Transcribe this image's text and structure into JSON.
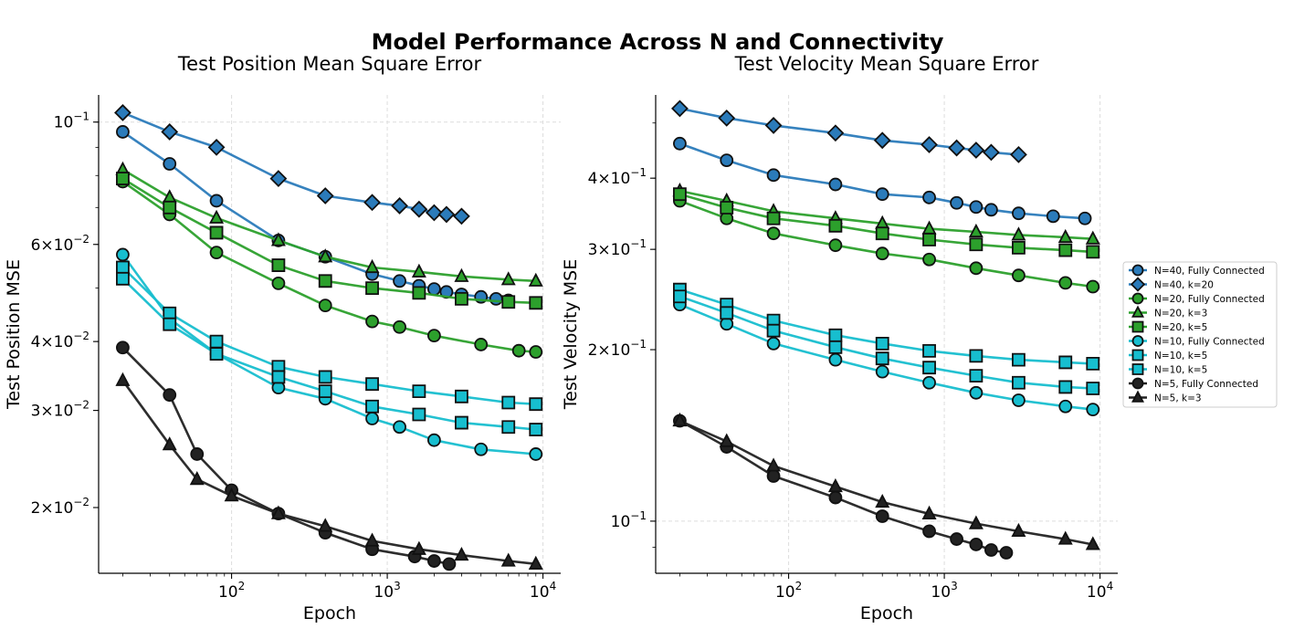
{
  "figure": {
    "suptitle": "Model Performance Across N and Connectivity"
  },
  "colors": {
    "N40": "#2b7bba",
    "N20": "#2ca02c",
    "N10": "#17becf",
    "N5": "#222222"
  },
  "legend_labels": [
    "N=40, Fully Connected",
    "N=40, k=20",
    "N=20, Fully Connected",
    "N=20, k=3",
    "N=20, k=5",
    "N=10, Fully Connected",
    "N=10, k=5",
    "N=10, k=5",
    "N=5, Fully Connected",
    "N=5, k=3"
  ],
  "chart_data": [
    {
      "type": "line",
      "title": "Test Position Mean Square Error",
      "xlabel": "Epoch",
      "ylabel": "Test Position MSE",
      "xscale": "log",
      "yscale": "log",
      "xlim": [
        14,
        13000
      ],
      "ylim": [
        0.0152,
        0.112
      ],
      "grid": true,
      "x_ticks": [
        {
          "value": 100,
          "base": "10",
          "exp": "2"
        },
        {
          "value": 1000,
          "base": "10",
          "exp": "3"
        },
        {
          "value": 10000,
          "base": "10",
          "exp": "4"
        }
      ],
      "y_ticks": [
        {
          "value": 0.1,
          "base": "10",
          "exp": "−1",
          "mant": ""
        },
        {
          "value": 0.06,
          "base": "10",
          "exp": "−2",
          "mant": "6×"
        },
        {
          "value": 0.04,
          "base": "10",
          "exp": "−2",
          "mant": "4×"
        },
        {
          "value": 0.03,
          "base": "10",
          "exp": "−2",
          "mant": "3×"
        },
        {
          "value": 0.02,
          "base": "10",
          "exp": "−2",
          "mant": "2×"
        }
      ],
      "series": [
        {
          "name": "N=40, Fully Connected",
          "color": "N40",
          "marker": "circle",
          "x": [
            20,
            40,
            80,
            200,
            400,
            800,
            1200,
            1600,
            2000,
            2400,
            3000,
            4000,
            5000,
            6000
          ],
          "values": [
            0.096,
            0.084,
            0.072,
            0.061,
            0.057,
            0.053,
            0.0515,
            0.0505,
            0.0498,
            0.0492,
            0.0487,
            0.0482,
            0.0478,
            0.0475
          ]
        },
        {
          "name": "N=40, k=20",
          "color": "N40",
          "marker": "diamond",
          "x": [
            20,
            40,
            80,
            200,
            400,
            800,
            1200,
            1600,
            2000,
            2400,
            3000
          ],
          "values": [
            0.104,
            0.096,
            0.09,
            0.079,
            0.0735,
            0.0715,
            0.0705,
            0.0695,
            0.0685,
            0.068,
            0.0675
          ]
        },
        {
          "name": "N=20, Fully Connected",
          "color": "N20",
          "marker": "circle",
          "x": [
            20,
            40,
            80,
            200,
            400,
            800,
            1200,
            2000,
            4000,
            7000,
            9000
          ],
          "values": [
            0.078,
            0.068,
            0.058,
            0.051,
            0.0465,
            0.0435,
            0.0425,
            0.041,
            0.0395,
            0.0385,
            0.0383
          ]
        },
        {
          "name": "N=20, k=3",
          "color": "N20",
          "marker": "triangle",
          "x": [
            20,
            40,
            80,
            200,
            400,
            800,
            1600,
            3000,
            6000,
            9000
          ],
          "values": [
            0.082,
            0.073,
            0.067,
            0.061,
            0.057,
            0.0545,
            0.0535,
            0.0525,
            0.0518,
            0.0515
          ]
        },
        {
          "name": "N=20, k=5",
          "color": "N20",
          "marker": "square",
          "x": [
            20,
            40,
            80,
            200,
            400,
            800,
            1600,
            3000,
            6000,
            9000
          ],
          "values": [
            0.079,
            0.07,
            0.063,
            0.055,
            0.0515,
            0.05,
            0.049,
            0.0478,
            0.0472,
            0.047
          ]
        },
        {
          "name": "N=10, Fully Connected",
          "color": "N10",
          "marker": "circle",
          "x": [
            20,
            40,
            80,
            200,
            400,
            800,
            1200,
            2000,
            4000,
            9000
          ],
          "values": [
            0.0575,
            0.044,
            0.038,
            0.033,
            0.0315,
            0.029,
            0.028,
            0.0265,
            0.0255,
            0.025
          ]
        },
        {
          "name": "N=10, k=5",
          "color": "N10",
          "marker": "square",
          "x": [
            20,
            40,
            80,
            200,
            400,
            800,
            1600,
            3000,
            6000,
            9000
          ],
          "values": [
            0.0545,
            0.045,
            0.04,
            0.036,
            0.0345,
            0.0335,
            0.0325,
            0.0318,
            0.031,
            0.0308
          ]
        },
        {
          "name": "N=10, k=5",
          "color": "N10",
          "marker": "square",
          "x": [
            20,
            40,
            80,
            200,
            400,
            800,
            1600,
            3000,
            6000,
            9000
          ],
          "values": [
            0.052,
            0.043,
            0.038,
            0.0345,
            0.0325,
            0.0305,
            0.0295,
            0.0285,
            0.028,
            0.0277
          ]
        },
        {
          "name": "N=5, Fully Connected",
          "color": "N5",
          "marker": "circle",
          "x": [
            20,
            40,
            60,
            100,
            200,
            400,
            800,
            1500,
            2000,
            2500
          ],
          "values": [
            0.039,
            0.032,
            0.025,
            0.0215,
            0.0195,
            0.018,
            0.0168,
            0.0163,
            0.016,
            0.0158
          ]
        },
        {
          "name": "N=5, k=3",
          "color": "N5",
          "marker": "triangle",
          "x": [
            20,
            40,
            60,
            100,
            200,
            400,
            800,
            1600,
            3000,
            6000,
            9000
          ],
          "values": [
            0.034,
            0.026,
            0.0225,
            0.021,
            0.0195,
            0.0185,
            0.0174,
            0.0168,
            0.0164,
            0.016,
            0.0158
          ]
        }
      ]
    },
    {
      "type": "line",
      "title": "Test Velocity Mean Square Error",
      "xlabel": "Epoch",
      "ylabel": "Test Velocity MSE",
      "xscale": "log",
      "yscale": "log",
      "xlim": [
        14,
        13000
      ],
      "ylim": [
        0.081,
        0.56
      ],
      "grid": true,
      "x_ticks": [
        {
          "value": 100,
          "base": "10",
          "exp": "2"
        },
        {
          "value": 1000,
          "base": "10",
          "exp": "3"
        },
        {
          "value": 10000,
          "base": "10",
          "exp": "4"
        }
      ],
      "y_ticks": [
        {
          "value": 0.4,
          "base": "10",
          "exp": "−1",
          "mant": "4×"
        },
        {
          "value": 0.3,
          "base": "10",
          "exp": "−1",
          "mant": "3×"
        },
        {
          "value": 0.2,
          "base": "10",
          "exp": "−1",
          "mant": "2×"
        },
        {
          "value": 0.1,
          "base": "10",
          "exp": "−1",
          "mant": ""
        }
      ],
      "series": [
        {
          "name": "N=40, Fully Connected",
          "color": "N40",
          "marker": "circle",
          "x": [
            20,
            40,
            80,
            200,
            400,
            800,
            1200,
            1600,
            2000,
            3000,
            5000,
            8000
          ],
          "values": [
            0.46,
            0.43,
            0.405,
            0.39,
            0.375,
            0.37,
            0.362,
            0.356,
            0.352,
            0.347,
            0.343,
            0.34
          ]
        },
        {
          "name": "N=40, k=20",
          "color": "N40",
          "marker": "diamond",
          "x": [
            20,
            40,
            80,
            200,
            400,
            800,
            1200,
            1600,
            2000,
            3000
          ],
          "values": [
            0.53,
            0.51,
            0.495,
            0.48,
            0.466,
            0.458,
            0.452,
            0.448,
            0.444,
            0.44
          ]
        },
        {
          "name": "N=20, Fully Connected",
          "color": "N20",
          "marker": "circle",
          "x": [
            20,
            40,
            80,
            200,
            400,
            800,
            1600,
            3000,
            6000,
            9000
          ],
          "values": [
            0.365,
            0.34,
            0.32,
            0.305,
            0.295,
            0.288,
            0.278,
            0.27,
            0.262,
            0.258
          ]
        },
        {
          "name": "N=20, k=3",
          "color": "N20",
          "marker": "triangle",
          "x": [
            20,
            40,
            80,
            200,
            400,
            800,
            1600,
            3000,
            6000,
            9000
          ],
          "values": [
            0.38,
            0.365,
            0.35,
            0.34,
            0.333,
            0.326,
            0.322,
            0.318,
            0.315,
            0.313
          ]
        },
        {
          "name": "N=20, k=5",
          "color": "N20",
          "marker": "square",
          "x": [
            20,
            40,
            80,
            200,
            400,
            800,
            1600,
            3000,
            6000,
            9000
          ],
          "values": [
            0.375,
            0.355,
            0.34,
            0.33,
            0.32,
            0.312,
            0.306,
            0.302,
            0.299,
            0.297
          ]
        },
        {
          "name": "N=10, Fully Connected",
          "color": "N10",
          "marker": "circle",
          "x": [
            20,
            40,
            80,
            200,
            400,
            800,
            1600,
            3000,
            6000,
            9000
          ],
          "values": [
            0.24,
            0.222,
            0.205,
            0.192,
            0.183,
            0.175,
            0.168,
            0.163,
            0.159,
            0.157
          ]
        },
        {
          "name": "N=10, k=5",
          "color": "N10",
          "marker": "square",
          "x": [
            20,
            40,
            80,
            200,
            400,
            800,
            1600,
            3000,
            6000,
            9000
          ],
          "values": [
            0.255,
            0.24,
            0.225,
            0.212,
            0.205,
            0.199,
            0.195,
            0.192,
            0.19,
            0.189
          ]
        },
        {
          "name": "N=10, k=5",
          "color": "N10",
          "marker": "square",
          "x": [
            20,
            40,
            80,
            200,
            400,
            800,
            1600,
            3000,
            6000,
            9000
          ],
          "values": [
            0.248,
            0.232,
            0.216,
            0.202,
            0.193,
            0.186,
            0.18,
            0.175,
            0.172,
            0.171
          ]
        },
        {
          "name": "N=5, Fully Connected",
          "color": "N5",
          "marker": "circle",
          "x": [
            20,
            40,
            80,
            200,
            400,
            800,
            1200,
            1600,
            2000,
            2500
          ],
          "values": [
            0.15,
            0.135,
            0.12,
            0.11,
            0.102,
            0.096,
            0.093,
            0.091,
            0.089,
            0.088
          ]
        },
        {
          "name": "N=5, k=3",
          "color": "N5",
          "marker": "triangle",
          "x": [
            20,
            40,
            80,
            200,
            400,
            800,
            1600,
            3000,
            6000,
            9000
          ],
          "values": [
            0.15,
            0.138,
            0.125,
            0.115,
            0.108,
            0.103,
            0.099,
            0.096,
            0.093,
            0.091
          ]
        }
      ]
    }
  ]
}
